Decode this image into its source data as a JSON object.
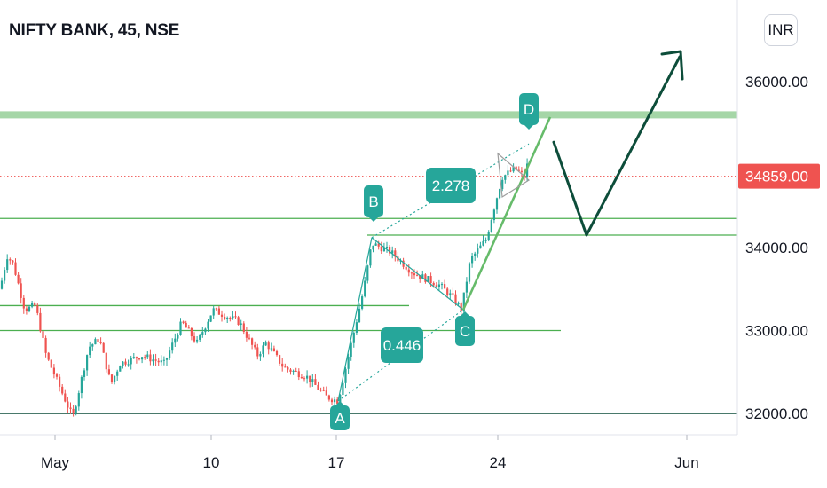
{
  "header": {
    "title": "NIFTY BANK, 45, NSE",
    "currency_button": "INR"
  },
  "chart_data": {
    "type": "candlestick",
    "symbol": "NIFTY BANK",
    "interval": "45",
    "exchange": "NSE",
    "ylim": [
      31700,
      36500
    ],
    "y_ticks": [
      "36000.00",
      "34000.00",
      "33000.00",
      "32000.00"
    ],
    "x_ticks": [
      "May",
      "10",
      "17",
      "24",
      "Jun"
    ],
    "last_price": "34859.00",
    "harmonic_pattern": {
      "points": [
        {
          "label": "A",
          "date": "May 17",
          "price": 32150
        },
        {
          "label": "B",
          "date": "May 18",
          "price": 34120
        },
        {
          "label": "C",
          "date": "May 22",
          "price": 33250
        },
        {
          "label": "D",
          "date": "May 25",
          "price": 35250
        }
      ],
      "ratios": [
        "0.446",
        "2.278"
      ]
    },
    "levels": [
      35600,
      34350,
      34150,
      33300,
      33000,
      32000
    ],
    "projection": [
      35250,
      34150,
      36050
    ],
    "colors": {
      "up": "#26a69a",
      "down": "#ef5350",
      "level": "#4caf50",
      "resistance_band": "#a5d6a7",
      "projection": "#0d4d3a",
      "pattern_label": "#26a69a",
      "price_tag": "#ef5350"
    }
  }
}
